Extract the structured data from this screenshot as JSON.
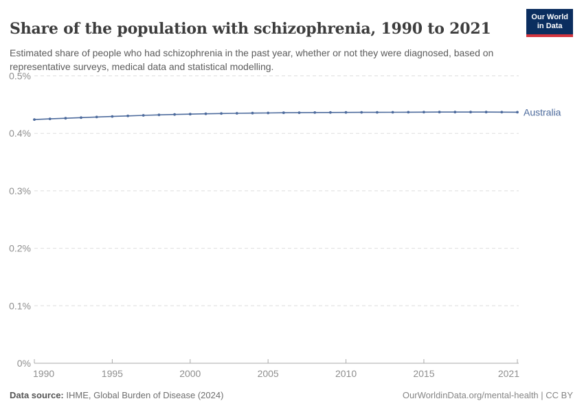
{
  "header": {
    "title": "Share of the population with schizophrenia, 1990 to 2021",
    "subtitle": "Estimated share of people who had schizophrenia in the past year, whether or not they were diagnosed, based on representative surveys, medical data and statistical modelling.",
    "logo": {
      "line1": "Our World",
      "line2": "in Data"
    }
  },
  "chart_data": {
    "type": "line",
    "title": "Share of the population with schizophrenia, 1990 to 2021",
    "xlabel": "",
    "ylabel": "",
    "unit": "%",
    "xlim": [
      1990,
      2021
    ],
    "ylim": [
      0,
      0.5
    ],
    "grid": "horizontal-dashed",
    "legend_position": "line-end-label",
    "x_ticks": [
      1990,
      1995,
      2000,
      2005,
      2010,
      2015,
      2021
    ],
    "x_tick_labels": [
      "1990",
      "1995",
      "2000",
      "2005",
      "2010",
      "2015",
      "2021"
    ],
    "y_ticks": [
      0,
      0.1,
      0.2,
      0.3,
      0.4,
      0.5
    ],
    "y_tick_labels": [
      "0%",
      "0.1%",
      "0.2%",
      "0.3%",
      "0.4%",
      "0.5%"
    ],
    "x": [
      1990,
      1991,
      1992,
      1993,
      1994,
      1995,
      1996,
      1997,
      1998,
      1999,
      2000,
      2001,
      2002,
      2003,
      2004,
      2005,
      2006,
      2007,
      2008,
      2009,
      2010,
      2011,
      2012,
      2013,
      2014,
      2015,
      2016,
      2017,
      2018,
      2019,
      2020,
      2021
    ],
    "series": [
      {
        "name": "Australia",
        "color": "#4c6a9c",
        "values": [
          0.424,
          0.4252,
          0.4263,
          0.4274,
          0.4284,
          0.4294,
          0.4304,
          0.4313,
          0.4321,
          0.4328,
          0.4334,
          0.434,
          0.4345,
          0.4349,
          0.4352,
          0.4355,
          0.4358,
          0.436,
          0.4362,
          0.4363,
          0.4364,
          0.4365,
          0.4366,
          0.4367,
          0.4368,
          0.4369,
          0.437,
          0.437,
          0.437,
          0.437,
          0.4369,
          0.4368
        ]
      }
    ]
  },
  "footer": {
    "data_source_label": "Data source:",
    "data_source_value": " IHME, Global Burden of Disease (2024)",
    "right_text": "OurWorldinData.org/mental-health | CC BY"
  },
  "colors": {
    "title_text": "#3d3d3d",
    "subtitle_text": "#5b5b5b",
    "axis_tick_label": "#8e8e8e",
    "gridline": "#dedede",
    "axis_line": "#a8a8a8",
    "series_line": "#4c6a9c",
    "entity_label": "#4c6a9c",
    "logo_background": "#0b2e5f",
    "logo_stripe": "#d4353e"
  }
}
